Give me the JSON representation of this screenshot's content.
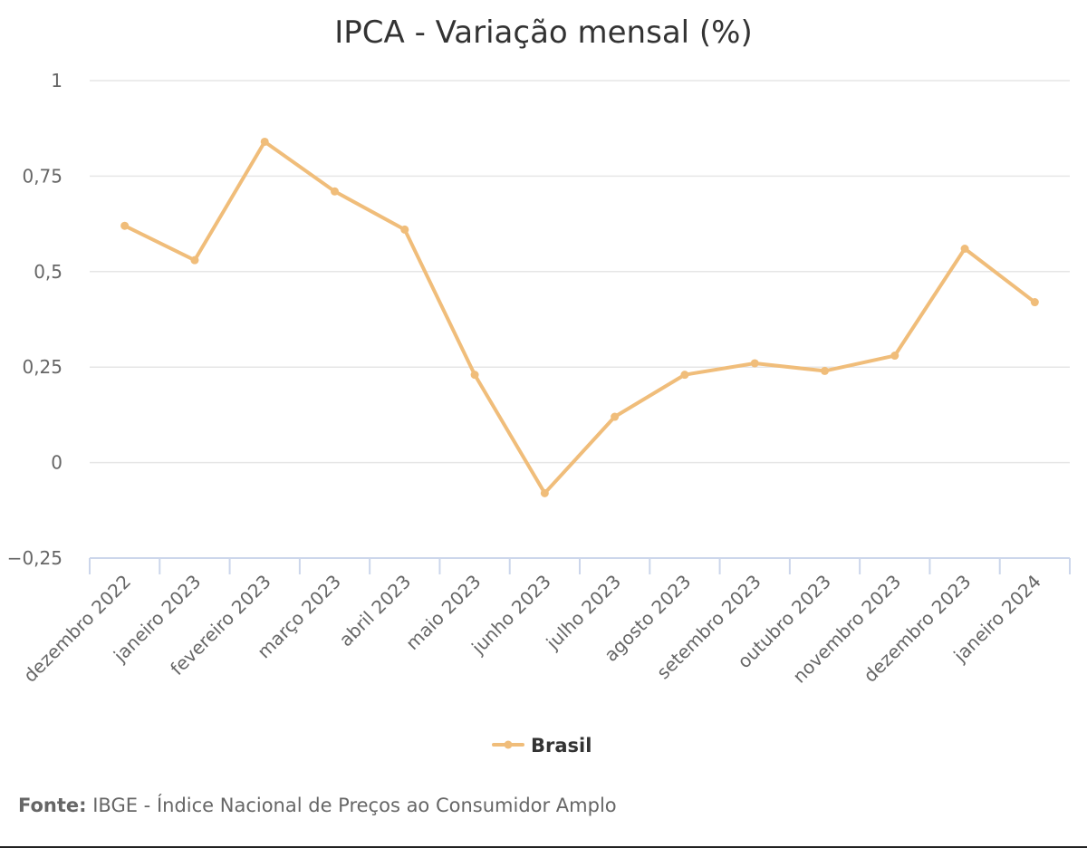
{
  "chart_data": {
    "type": "line",
    "title": "IPCA - Variação mensal (%)",
    "categories": [
      "dezembro 2022",
      "janeiro 2023",
      "fevereiro 2023",
      "março 2023",
      "abril 2023",
      "maio 2023",
      "junho 2023",
      "julho 2023",
      "agosto 2023",
      "setembro 2023",
      "outubro 2023",
      "novembro 2023",
      "dezembro 2023",
      "janeiro 2024"
    ],
    "series": [
      {
        "name": "Brasil",
        "color": "#f0bd7a",
        "values": [
          0.62,
          0.53,
          0.84,
          0.71,
          0.61,
          0.23,
          -0.08,
          0.12,
          0.23,
          0.26,
          0.24,
          0.28,
          0.56,
          0.42
        ]
      }
    ],
    "ylim": [
      -0.25,
      1
    ],
    "yticks": [
      1,
      0.75,
      0.5,
      0.25,
      0,
      -0.25
    ],
    "ytick_labels": [
      "1",
      "0,75",
      "0,5",
      "0,25",
      "0",
      "−0,25"
    ],
    "grid": true,
    "legend_position": "bottom"
  },
  "source": {
    "label": "Fonte:",
    "text": " IBGE - Índice Nacional de Preços ao Consumidor Amplo"
  }
}
